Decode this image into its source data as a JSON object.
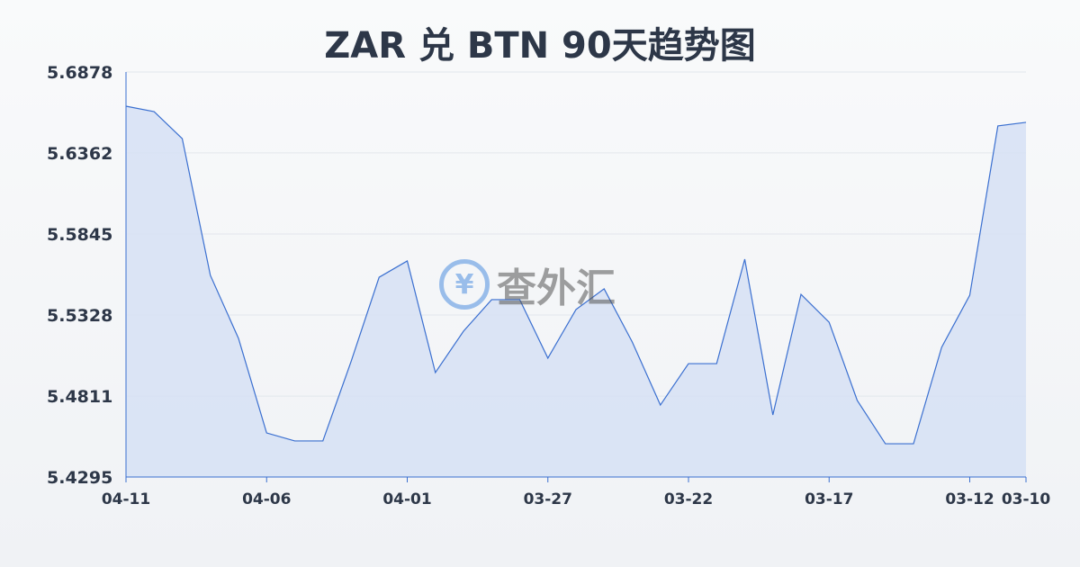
{
  "chart_data": {
    "type": "area",
    "title": "ZAR 兑 BTN 90天趋势图",
    "xlabel": "",
    "ylabel": "",
    "ylim": [
      5.4295,
      5.6878
    ],
    "yticks": [
      "5.6878",
      "5.6362",
      "5.5845",
      "5.5328",
      "5.4811",
      "5.4295"
    ],
    "xticks": [
      "04-11",
      "04-06",
      "04-01",
      "03-27",
      "03-22",
      "03-17",
      "03-12",
      "03-10"
    ],
    "grid": true,
    "colors": {
      "line": "#3a6fd0",
      "fill": "#d6e1f5"
    },
    "x": [
      "04-11",
      "04-10",
      "04-09",
      "04-08",
      "04-07",
      "04-06",
      "04-05",
      "04-04",
      "04-03",
      "04-02",
      "04-01",
      "03-31",
      "03-30",
      "03-29",
      "03-28",
      "03-27",
      "03-26",
      "03-25",
      "03-24",
      "03-23",
      "03-22",
      "03-21",
      "03-20",
      "03-19",
      "03-18",
      "03-17",
      "03-16",
      "03-15",
      "03-14",
      "03-13",
      "03-12",
      "03-11",
      "03-10"
    ],
    "values": [
      5.666,
      5.6625,
      5.6453,
      5.5581,
      5.5179,
      5.4576,
      5.4525,
      5.4525,
      5.503,
      5.5569,
      5.5673,
      5.4961,
      5.5225,
      5.5426,
      5.5426,
      5.5053,
      5.5363,
      5.5495,
      5.5156,
      5.4754,
      5.5018,
      5.5018,
      5.5684,
      5.4691,
      5.546,
      5.5282,
      5.4783,
      5.4507,
      5.4507,
      5.5122,
      5.5454,
      5.6534,
      5.6557
    ]
  },
  "watermark": {
    "text": "查外汇",
    "icon": "yen-exchange-icon"
  }
}
